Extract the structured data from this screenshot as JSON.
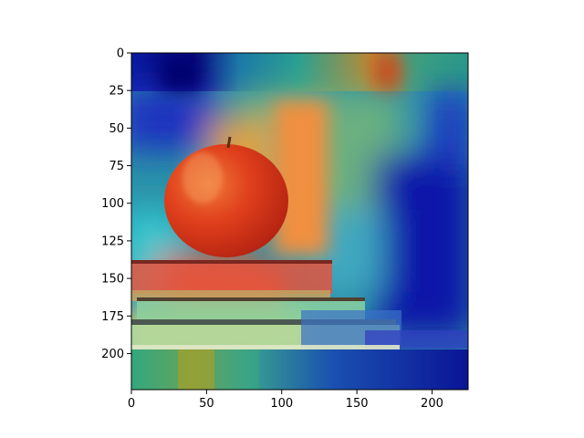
{
  "chart_data": {
    "type": "image",
    "description_free": true,
    "xlabel": "",
    "ylabel": "",
    "title": "",
    "xlim": [
      0,
      224
    ],
    "ylim": [
      224,
      0
    ],
    "x_ticks": [
      0,
      50,
      100,
      150,
      200
    ],
    "y_ticks": [
      0,
      25,
      50,
      75,
      100,
      125,
      150,
      175,
      200
    ],
    "colormap": "jet",
    "grid": false,
    "legend": "none"
  },
  "colors": {
    "axis": "#000000",
    "overlay_low": "#00008f",
    "overlay_mid": "#1ea0a0",
    "overlay_high": "#d02010"
  }
}
